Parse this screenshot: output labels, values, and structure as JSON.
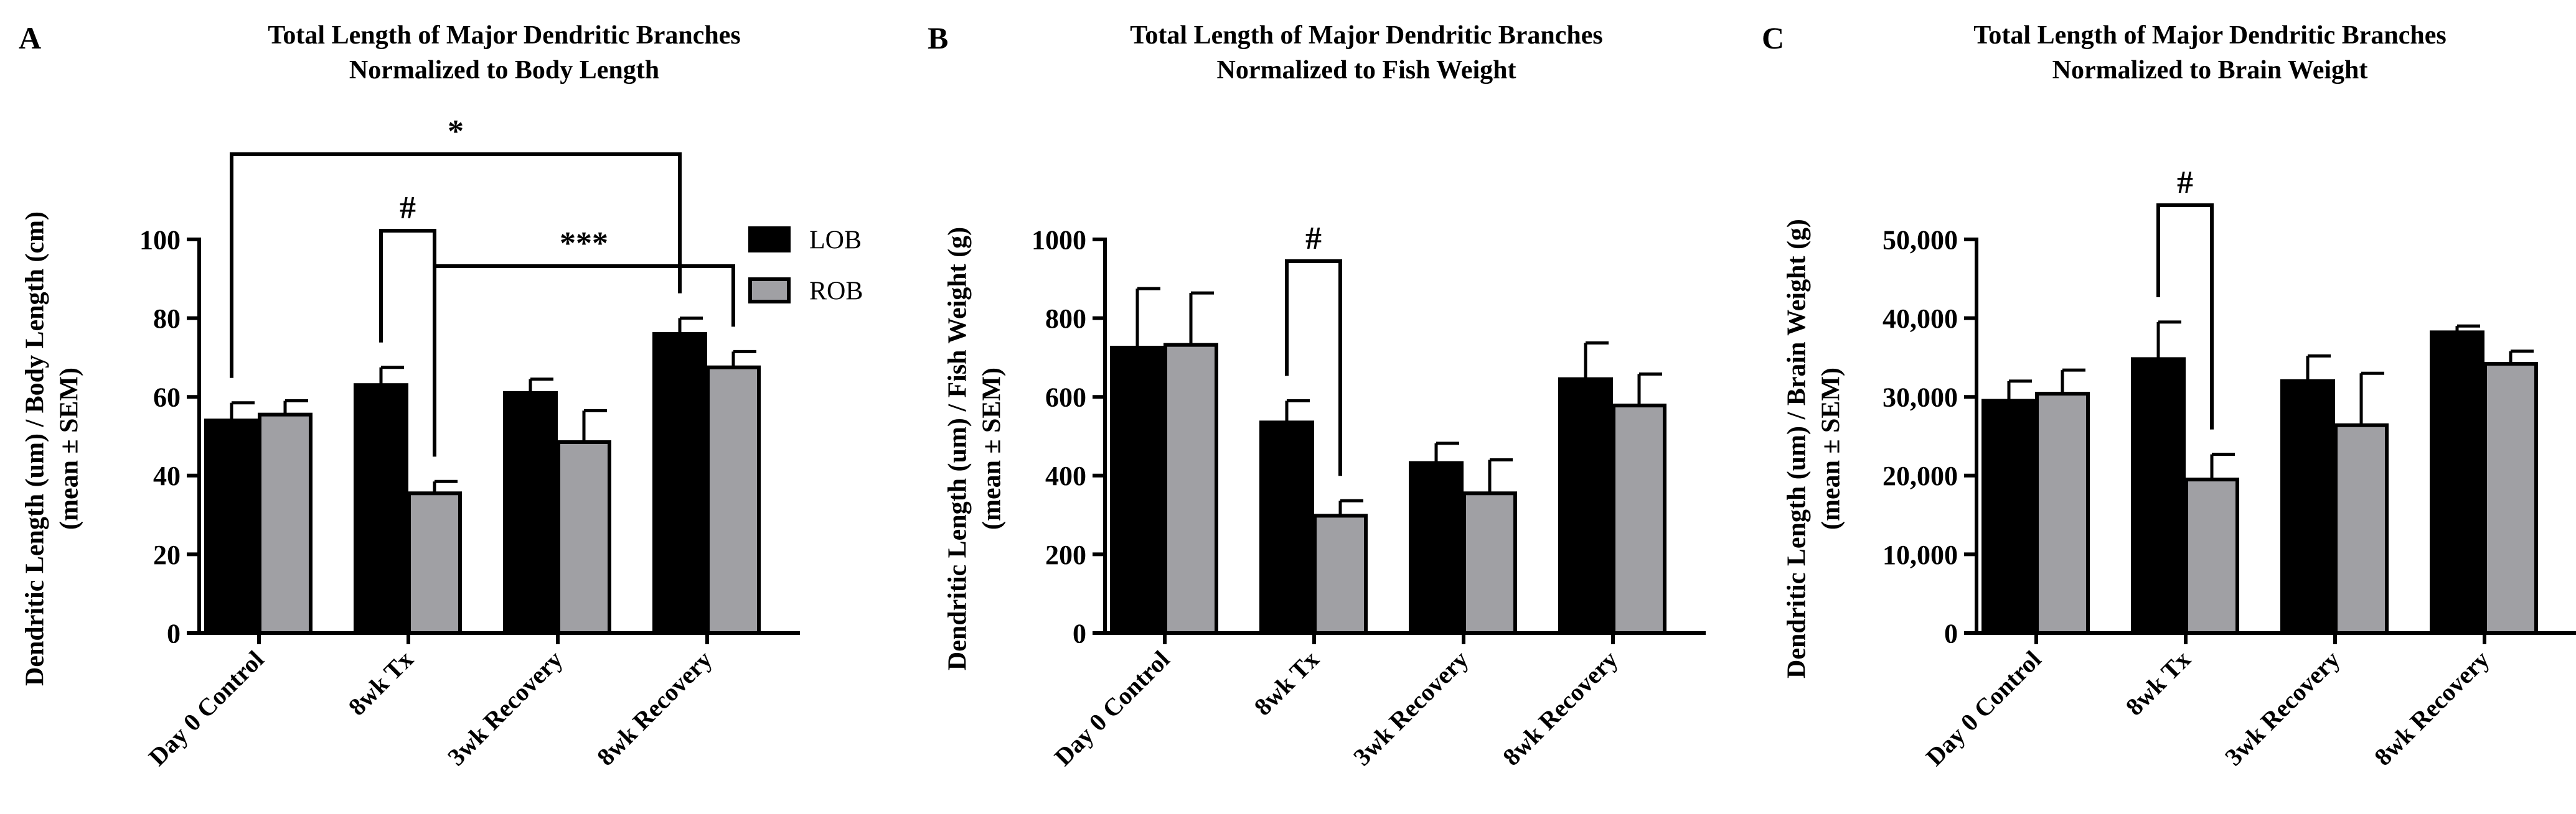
{
  "chart_data": [
    {
      "panel": "A",
      "type": "bar",
      "title": [
        "Total Length of Major Dendritic Branches",
        "Normalized to Body Length"
      ],
      "ylabel": [
        "Dendritic Length (um) / Body Length (cm)",
        "(mean ± SEM)"
      ],
      "categories": [
        "Day 0 Control",
        "8wk Tx",
        "3wk Recovery",
        "8wk Recovery"
      ],
      "series": [
        {
          "name": "LOB",
          "color": "#000000",
          "values": [
            54,
            63,
            61,
            76
          ],
          "sem": [
            4.5,
            4.5,
            3.5,
            4
          ]
        },
        {
          "name": "ROB",
          "color": "#a0a0a4",
          "values": [
            55.5,
            35.5,
            48.5,
            67.5
          ],
          "sem": [
            3.5,
            3,
            8,
            4
          ]
        }
      ],
      "ylim": [
        0,
        100
      ],
      "yticks": [
        0,
        20,
        40,
        60,
        80,
        100
      ],
      "ytick_labels": [
        "0",
        "20",
        "40",
        "60",
        "80",
        "100"
      ],
      "legend": {
        "placement": "top-right",
        "entries": [
          "LOB",
          "ROB"
        ]
      },
      "annotations": [
        {
          "label": "#",
          "from": [
            1,
            0
          ],
          "to": [
            1,
            1
          ]
        },
        {
          "label": "***",
          "from": [
            1,
            1
          ],
          "to": [
            3,
            1
          ]
        },
        {
          "label": "*",
          "from": [
            0,
            0
          ],
          "to": [
            3,
            0
          ]
        }
      ]
    },
    {
      "panel": "B",
      "type": "bar",
      "title": [
        "Total Length of Major Dendritic Branches",
        "Normalized to Fish Weight"
      ],
      "ylabel": [
        "Dendritic Length  (um) / Fish  Weight  (g)",
        "(mean ± SEM)"
      ],
      "categories": [
        "Day 0 Control",
        "8wk Tx",
        "3wk Recovery",
        "8wk Recovery"
      ],
      "series": [
        {
          "name": "LOB",
          "color": "#000000",
          "values": [
            725,
            535,
            432,
            645
          ],
          "sem": [
            150,
            55,
            50,
            92
          ]
        },
        {
          "name": "ROB",
          "color": "#a0a0a4",
          "values": [
            732,
            298,
            355,
            578
          ],
          "sem": [
            132,
            38,
            85,
            80
          ]
        }
      ],
      "ylim": [
        0,
        1000
      ],
      "yticks": [
        0,
        200,
        400,
        600,
        800,
        1000
      ],
      "ytick_labels": [
        "0",
        "200",
        "400",
        "600",
        "800",
        "1000"
      ],
      "annotations": [
        {
          "label": "#",
          "from": [
            1,
            0
          ],
          "to": [
            1,
            1
          ]
        }
      ]
    },
    {
      "panel": "C",
      "type": "bar",
      "title": [
        "Total Length of Major Dendritic Branches",
        "Normalized to Brain Weight"
      ],
      "ylabel": [
        "Dendritic Length  (um) / Brain  Weight  (g)",
        "(mean ± SEM)"
      ],
      "categories": [
        "Day 0 Control",
        "8wk Tx",
        "3wk Recovery",
        "8wk Recovery"
      ],
      "series": [
        {
          "name": "LOB",
          "color": "#000000",
          "values": [
            29500,
            34800,
            32000,
            38200
          ],
          "sem": [
            2500,
            4700,
            3200,
            800
          ]
        },
        {
          "name": "ROB",
          "color": "#a0a0a4",
          "values": [
            30400,
            19500,
            26400,
            34200
          ],
          "sem": [
            3000,
            3200,
            6600,
            1600
          ]
        }
      ],
      "ylim": [
        0,
        50000
      ],
      "yticks": [
        0,
        10000,
        20000,
        30000,
        40000,
        50000
      ],
      "ytick_labels": [
        "0",
        "10,000",
        "20,000",
        "30,000",
        "40,000",
        "50,000"
      ],
      "annotations": [
        {
          "label": "#",
          "from": [
            1,
            0
          ],
          "to": [
            1,
            1
          ]
        }
      ]
    }
  ]
}
